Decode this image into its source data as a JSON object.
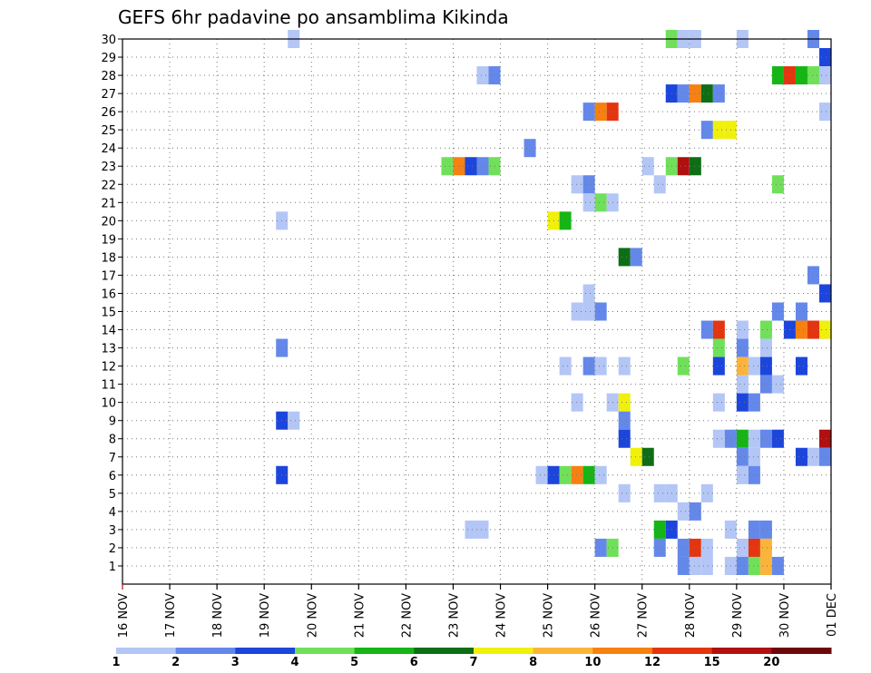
{
  "chart_data": {
    "type": "heatmap",
    "title": "GEFS 6hr padavine po ansamblima Kikinda",
    "xlabel": "",
    "ylabel": "",
    "x_ticks": [
      {
        "day": 16,
        "label": "16 NOV"
      },
      {
        "day": 17,
        "label": "17 NOV"
      },
      {
        "day": 18,
        "label": "18 NOV"
      },
      {
        "day": 19,
        "label": "19 NOV"
      },
      {
        "day": 20,
        "label": "20 NOV"
      },
      {
        "day": 21,
        "label": "21 NOV"
      },
      {
        "day": 22,
        "label": "22 NOV"
      },
      {
        "day": 23,
        "label": "23 NOV"
      },
      {
        "day": 24,
        "label": "24 NOV"
      },
      {
        "day": 25,
        "label": "25 NOV"
      },
      {
        "day": 26,
        "label": "26 NOV"
      },
      {
        "day": 27,
        "label": "27 NOV"
      },
      {
        "day": 28,
        "label": "28 NOV"
      },
      {
        "day": 29,
        "label": "29 NOV"
      },
      {
        "day": 30,
        "label": "30 NOV"
      },
      {
        "day": 31,
        "label": "01 DEC"
      }
    ],
    "x_range": [
      "16 NOV",
      "01 DEC"
    ],
    "y_ticks": [
      1,
      2,
      3,
      4,
      5,
      6,
      7,
      8,
      9,
      10,
      11,
      12,
      13,
      14,
      15,
      16,
      17,
      18,
      19,
      20,
      21,
      22,
      23,
      24,
      25,
      26,
      27,
      28,
      29,
      30
    ],
    "y_range": [
      0,
      30
    ],
    "grid": true,
    "colorbar": {
      "labels": [
        "1",
        "2",
        "3",
        "4",
        "5",
        "6",
        "7",
        "8",
        "10",
        "12",
        "15",
        "20"
      ],
      "colors": [
        "#b3c6f6",
        "#6488ea",
        "#1c45dc",
        "#70e05a",
        "#15b515",
        "#0e6e16",
        "#f0f00a",
        "#fbb43a",
        "#f68110",
        "#e33510",
        "#b01010",
        "#6e0808"
      ],
      "thresholds": [
        1,
        2,
        3,
        4,
        5,
        6,
        7,
        8,
        10,
        12,
        15,
        20,
        25
      ]
    },
    "cells": [
      {
        "m": 30,
        "d": 19.5,
        "v": 1.5
      },
      {
        "m": 30,
        "d": 27.5,
        "v": 4.5
      },
      {
        "m": 30,
        "d": 27.75,
        "v": 1.5
      },
      {
        "m": 30,
        "d": 28.0,
        "v": 1.5
      },
      {
        "m": 30,
        "d": 29.0,
        "v": 1.5
      },
      {
        "m": 30,
        "d": 30.5,
        "v": 2.5
      },
      {
        "m": 29,
        "d": 30.75,
        "v": 3.5
      },
      {
        "m": 28,
        "d": 23.5,
        "v": 1.5
      },
      {
        "m": 28,
        "d": 23.75,
        "v": 2.5
      },
      {
        "m": 28,
        "d": 29.75,
        "v": 5.5
      },
      {
        "m": 28,
        "d": 30.0,
        "v": 13
      },
      {
        "m": 28,
        "d": 30.25,
        "v": 5.5
      },
      {
        "m": 28,
        "d": 30.5,
        "v": 4.5
      },
      {
        "m": 28,
        "d": 30.75,
        "v": 1.5
      },
      {
        "m": 27,
        "d": 27.5,
        "v": 3.5
      },
      {
        "m": 27,
        "d": 27.75,
        "v": 2.5
      },
      {
        "m": 27,
        "d": 28.0,
        "v": 11
      },
      {
        "m": 27,
        "d": 28.25,
        "v": 6.5
      },
      {
        "m": 27,
        "d": 28.5,
        "v": 2.5
      },
      {
        "m": 26,
        "d": 25.75,
        "v": 2.5
      },
      {
        "m": 26,
        "d": 26.0,
        "v": 11
      },
      {
        "m": 26,
        "d": 26.25,
        "v": 13
      },
      {
        "m": 26,
        "d": 30.75,
        "v": 1.5
      },
      {
        "m": 25,
        "d": 28.25,
        "v": 2.5
      },
      {
        "m": 25,
        "d": 28.5,
        "v": 7.5
      },
      {
        "m": 25,
        "d": 28.75,
        "v": 7.5
      },
      {
        "m": 24,
        "d": 24.5,
        "v": 2.5
      },
      {
        "m": 23,
        "d": 22.75,
        "v": 4.5
      },
      {
        "m": 23,
        "d": 23.0,
        "v": 11
      },
      {
        "m": 23,
        "d": 23.25,
        "v": 3.5
      },
      {
        "m": 23,
        "d": 23.5,
        "v": 2.5
      },
      {
        "m": 23,
        "d": 23.75,
        "v": 4.5
      },
      {
        "m": 23,
        "d": 27.0,
        "v": 1.5
      },
      {
        "m": 23,
        "d": 27.5,
        "v": 4.5
      },
      {
        "m": 23,
        "d": 27.75,
        "v": 17
      },
      {
        "m": 23,
        "d": 28.0,
        "v": 6.5
      },
      {
        "m": 22,
        "d": 25.5,
        "v": 1.5
      },
      {
        "m": 22,
        "d": 25.75,
        "v": 2.5
      },
      {
        "m": 22,
        "d": 27.25,
        "v": 1.5
      },
      {
        "m": 22,
        "d": 29.75,
        "v": 4.5
      },
      {
        "m": 21,
        "d": 25.75,
        "v": 1.5
      },
      {
        "m": 21,
        "d": 26.0,
        "v": 4.5
      },
      {
        "m": 21,
        "d": 26.25,
        "v": 1.5
      },
      {
        "m": 20,
        "d": 19.25,
        "v": 1.5
      },
      {
        "m": 20,
        "d": 25.0,
        "v": 7.5
      },
      {
        "m": 20,
        "d": 25.25,
        "v": 5.5
      },
      {
        "m": 18,
        "d": 26.5,
        "v": 6.5
      },
      {
        "m": 18,
        "d": 26.75,
        "v": 2.5
      },
      {
        "m": 17,
        "d": 30.5,
        "v": 2.5
      },
      {
        "m": 16,
        "d": 25.75,
        "v": 1.5
      },
      {
        "m": 16,
        "d": 30.75,
        "v": 3.5
      },
      {
        "m": 15,
        "d": 25.5,
        "v": 1.5
      },
      {
        "m": 15,
        "d": 25.75,
        "v": 1.5
      },
      {
        "m": 15,
        "d": 26.0,
        "v": 2.5
      },
      {
        "m": 15,
        "d": 29.75,
        "v": 2.5
      },
      {
        "m": 15,
        "d": 30.25,
        "v": 2.5
      },
      {
        "m": 14,
        "d": 28.25,
        "v": 2.5
      },
      {
        "m": 14,
        "d": 28.5,
        "v": 13
      },
      {
        "m": 14,
        "d": 29.0,
        "v": 1.5
      },
      {
        "m": 14,
        "d": 29.5,
        "v": 4.5
      },
      {
        "m": 14,
        "d": 30.0,
        "v": 3.5
      },
      {
        "m": 14,
        "d": 30.25,
        "v": 11
      },
      {
        "m": 14,
        "d": 30.5,
        "v": 13
      },
      {
        "m": 14,
        "d": 30.75,
        "v": 17
      },
      {
        "m": 14,
        "d": 30.95,
        "v": 7.5
      },
      {
        "m": 13,
        "d": 19.25,
        "v": 2.5
      },
      {
        "m": 13,
        "d": 28.5,
        "v": 4.5
      },
      {
        "m": 13,
        "d": 29.0,
        "v": 2.5
      },
      {
        "m": 13,
        "d": 29.5,
        "v": 1.5
      },
      {
        "m": 12,
        "d": 25.25,
        "v": 1.5
      },
      {
        "m": 12,
        "d": 25.75,
        "v": 2.5
      },
      {
        "m": 12,
        "d": 26.0,
        "v": 1.5
      },
      {
        "m": 12,
        "d": 26.5,
        "v": 1.5
      },
      {
        "m": 12,
        "d": 27.75,
        "v": 4.5
      },
      {
        "m": 12,
        "d": 28.5,
        "v": 3.5
      },
      {
        "m": 12,
        "d": 29.0,
        "v": 9
      },
      {
        "m": 12,
        "d": 29.25,
        "v": 1.5
      },
      {
        "m": 12,
        "d": 29.5,
        "v": 3.5
      },
      {
        "m": 12,
        "d": 30.25,
        "v": 3.5
      },
      {
        "m": 11,
        "d": 29.0,
        "v": 1.5
      },
      {
        "m": 11,
        "d": 29.5,
        "v": 2.5
      },
      {
        "m": 11,
        "d": 29.75,
        "v": 1.5
      },
      {
        "m": 10,
        "d": 25.5,
        "v": 1.5
      },
      {
        "m": 10,
        "d": 26.25,
        "v": 1.5
      },
      {
        "m": 10,
        "d": 26.5,
        "v": 7.5
      },
      {
        "m": 10,
        "d": 28.5,
        "v": 1.5
      },
      {
        "m": 10,
        "d": 29.0,
        "v": 3.5
      },
      {
        "m": 10,
        "d": 29.25,
        "v": 2.5
      },
      {
        "m": 9,
        "d": 19.25,
        "v": 3.5
      },
      {
        "m": 9,
        "d": 19.5,
        "v": 1.5
      },
      {
        "m": 9,
        "d": 26.5,
        "v": 2.5
      },
      {
        "m": 8,
        "d": 26.5,
        "v": 3.5
      },
      {
        "m": 8,
        "d": 28.5,
        "v": 1.5
      },
      {
        "m": 8,
        "d": 28.75,
        "v": 2.5
      },
      {
        "m": 8,
        "d": 29.0,
        "v": 5.5
      },
      {
        "m": 8,
        "d": 29.25,
        "v": 1.5
      },
      {
        "m": 8,
        "d": 29.5,
        "v": 2.5
      },
      {
        "m": 8,
        "d": 29.75,
        "v": 3.5
      },
      {
        "m": 8,
        "d": 30.95,
        "v": 15.5
      },
      {
        "m": 7,
        "d": 26.75,
        "v": 7.5
      },
      {
        "m": 7,
        "d": 27.0,
        "v": 6.5
      },
      {
        "m": 7,
        "d": 29.0,
        "v": 2.5
      },
      {
        "m": 7,
        "d": 29.25,
        "v": 1.5
      },
      {
        "m": 7,
        "d": 30.25,
        "v": 3.5
      },
      {
        "m": 7,
        "d": 30.5,
        "v": 1.5
      },
      {
        "m": 7,
        "d": 30.75,
        "v": 2.5
      },
      {
        "m": 6,
        "d": 19.25,
        "v": 3.5
      },
      {
        "m": 6,
        "d": 24.75,
        "v": 1.5
      },
      {
        "m": 6,
        "d": 25.0,
        "v": 3.5
      },
      {
        "m": 6,
        "d": 25.25,
        "v": 4.5
      },
      {
        "m": 6,
        "d": 25.5,
        "v": 11
      },
      {
        "m": 6,
        "d": 25.75,
        "v": 5.5
      },
      {
        "m": 6,
        "d": 26.0,
        "v": 1.5
      },
      {
        "m": 6,
        "d": 29.0,
        "v": 1.5
      },
      {
        "m": 6,
        "d": 29.25,
        "v": 2.5
      },
      {
        "m": 5,
        "d": 26.5,
        "v": 1.5
      },
      {
        "m": 5,
        "d": 27.25,
        "v": 1.5
      },
      {
        "m": 5,
        "d": 27.5,
        "v": 1.5
      },
      {
        "m": 5,
        "d": 28.25,
        "v": 1.5
      },
      {
        "m": 4,
        "d": 27.75,
        "v": 1.5
      },
      {
        "m": 4,
        "d": 28.0,
        "v": 2.5
      },
      {
        "m": 3,
        "d": 23.25,
        "v": 1.5
      },
      {
        "m": 3,
        "d": 23.5,
        "v": 1.5
      },
      {
        "m": 3,
        "d": 27.25,
        "v": 5.5
      },
      {
        "m": 3,
        "d": 27.5,
        "v": 3.5
      },
      {
        "m": 3,
        "d": 28.75,
        "v": 1.5
      },
      {
        "m": 3,
        "d": 29.25,
        "v": 2.5
      },
      {
        "m": 3,
        "d": 29.5,
        "v": 2.5
      },
      {
        "m": 2,
        "d": 26.0,
        "v": 2.5
      },
      {
        "m": 2,
        "d": 26.25,
        "v": 4.5
      },
      {
        "m": 2,
        "d": 27.25,
        "v": 2.5
      },
      {
        "m": 2,
        "d": 27.75,
        "v": 2.5
      },
      {
        "m": 2,
        "d": 28.0,
        "v": 13
      },
      {
        "m": 2,
        "d": 28.25,
        "v": 1.5
      },
      {
        "m": 2,
        "d": 29.0,
        "v": 1.5
      },
      {
        "m": 2,
        "d": 29.25,
        "v": 13
      },
      {
        "m": 2,
        "d": 29.5,
        "v": 9
      },
      {
        "m": 1,
        "d": 27.75,
        "v": 2.5
      },
      {
        "m": 1,
        "d": 28.0,
        "v": 1.5
      },
      {
        "m": 1,
        "d": 28.25,
        "v": 1.5
      },
      {
        "m": 1,
        "d": 28.75,
        "v": 1.5
      },
      {
        "m": 1,
        "d": 29.0,
        "v": 2.5
      },
      {
        "m": 1,
        "d": 29.25,
        "v": 4.5
      },
      {
        "m": 1,
        "d": 29.5,
        "v": 9
      },
      {
        "m": 1,
        "d": 29.75,
        "v": 2.5
      }
    ]
  }
}
